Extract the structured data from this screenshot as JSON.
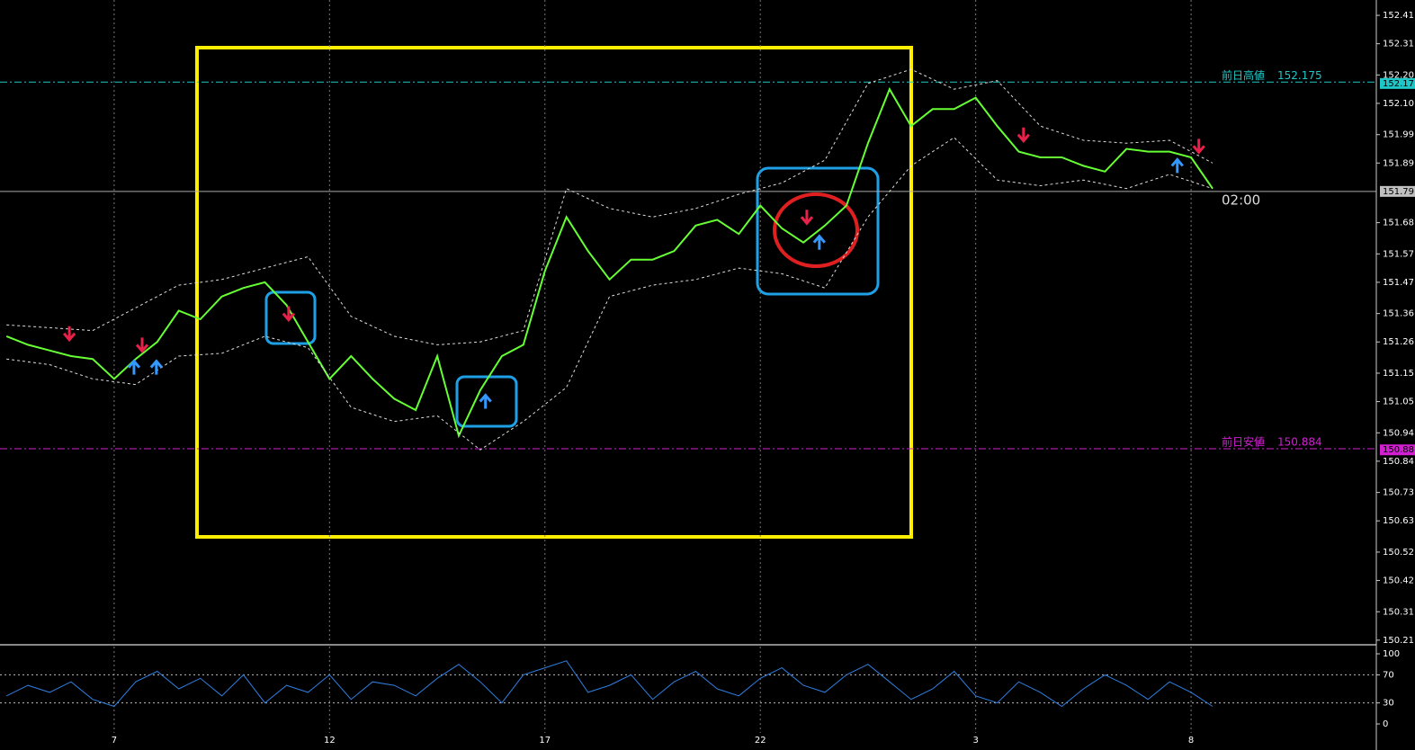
{
  "chart_data": [
    {
      "type": "line",
      "xlim": [
        -2.65,
        29.3
      ],
      "ylim": [
        150.2,
        152.464
      ],
      "xticks": [
        0,
        5,
        10,
        15,
        20,
        25
      ],
      "yticks": [
        152.41,
        152.31,
        {
          "value": 152.2,
          "label": "152.20"
        },
        {
          "value": 152.1,
          "label": "152.10"
        },
        151.99,
        151.89,
        151.68,
        151.57,
        151.47,
        151.36,
        151.26,
        151.15,
        151.05,
        150.94,
        150.84,
        150.73,
        150.63,
        150.52,
        150.42,
        150.31,
        150.21
      ],
      "grid": true,
      "series": [
        {
          "color": "#66ff33",
          "width": 2,
          "x": [
            -2.5,
            -2,
            -1.5,
            -1,
            -0.5,
            0,
            0.5,
            1,
            1.5,
            2,
            2.5,
            3,
            3.5,
            4,
            4.5,
            5,
            5.5,
            6,
            6.5,
            7,
            7.5,
            8,
            8.5,
            9,
            9.5,
            10,
            10.5,
            11,
            11.5,
            12,
            12.5,
            13,
            13.5,
            14,
            14.5,
            15,
            15.5,
            16,
            16.5,
            17,
            17.5,
            18,
            18.5,
            19,
            19.5,
            20,
            20.5,
            21,
            21.5,
            22,
            22.5,
            23,
            23.5,
            24,
            24.5,
            25,
            25.5
          ],
          "values": [
            151.28,
            151.25,
            151.23,
            151.21,
            151.2,
            151.13,
            151.2,
            151.26,
            151.37,
            151.34,
            151.42,
            151.45,
            151.47,
            151.39,
            151.26,
            151.13,
            151.21,
            151.13,
            151.06,
            151.02,
            151.21,
            150.93,
            151.09,
            151.21,
            151.25,
            151.51,
            151.7,
            151.58,
            151.48,
            151.55,
            151.55,
            151.58,
            151.67,
            151.69,
            151.64,
            151.74,
            151.66,
            151.61,
            151.67,
            151.74,
            151.96,
            152.15,
            152.02,
            152.08,
            152.08,
            152.12,
            152.02,
            151.93,
            151.91,
            151.91,
            151.88,
            151.86,
            151.94,
            151.93,
            151.93,
            151.91,
            151.8
          ]
        },
        {
          "color": "#dddddd",
          "dash": true,
          "width": 1,
          "x": [
            -2.5,
            -1.5,
            -0.5,
            0.5,
            1.5,
            2.5,
            3.5,
            4.5,
            5.5,
            6.5,
            7.5,
            8.5,
            9.5,
            10.5,
            11.5,
            12.5,
            13.5,
            14.5,
            15.5,
            16.5,
            17.5,
            18.5,
            19.5,
            20.5,
            21.5,
            22.5,
            23.5,
            24.5,
            25.5
          ],
          "values": [
            151.32,
            151.31,
            151.3,
            151.38,
            151.46,
            151.48,
            151.52,
            151.56,
            151.35,
            151.28,
            151.25,
            151.26,
            151.3,
            151.8,
            151.73,
            151.7,
            151.73,
            151.78,
            151.82,
            151.9,
            152.17,
            152.22,
            152.15,
            152.18,
            152.02,
            151.97,
            151.96,
            151.97,
            151.89
          ]
        },
        {
          "color": "#dddddd",
          "dash": true,
          "width": 1,
          "x": [
            -2.5,
            -1.5,
            -0.5,
            0.5,
            1.5,
            2.5,
            3.5,
            4.5,
            5.5,
            6.5,
            7.5,
            8.5,
            9.5,
            10.5,
            11.5,
            12.5,
            13.5,
            14.5,
            15.5,
            16.5,
            17.5,
            18.5,
            19.5,
            20.5,
            21.5,
            22.5,
            23.5,
            24.5,
            25.5
          ],
          "values": [
            151.2,
            151.18,
            151.13,
            151.11,
            151.21,
            151.22,
            151.28,
            151.24,
            151.03,
            150.98,
            151.0,
            150.88,
            150.98,
            151.1,
            151.42,
            151.46,
            151.48,
            151.52,
            151.5,
            151.45,
            151.7,
            151.88,
            151.98,
            151.83,
            151.81,
            151.83,
            151.8,
            151.85,
            151.8
          ]
        }
      ],
      "markers": [
        {
          "shape": "down",
          "color": "#e8214a",
          "x": [
            -1.04,
            0.65,
            4.05,
            16.08,
            21.11,
            25.18
          ],
          "y": [
            151.29,
            151.25,
            151.36,
            151.7,
            151.99,
            151.95
          ]
        },
        {
          "shape": "up",
          "color": "#3399ff",
          "x": [
            0.46,
            0.98,
            8.62,
            16.37,
            24.68
          ],
          "y": [
            151.17,
            151.17,
            151.05,
            151.61,
            151.88
          ]
        }
      ],
      "levels": [
        {
          "name": "前日高値",
          "value": 152.175,
          "color": "#1fc8c8"
        },
        {
          "name": "前日安値",
          "value": 150.884,
          "color": "#d21fd2"
        }
      ],
      "price_tags": [
        {
          "value": 152.17,
          "label": "152.17",
          "color": "#1fc8c8"
        },
        {
          "value": 151.79,
          "label": "151.79",
          "color": "#c0c0c0"
        },
        {
          "value": 150.88,
          "label": "150.88",
          "color": "#d21fd2"
        }
      ],
      "current_price": 151.79,
      "countdown": "02:00"
    },
    {
      "type": "line",
      "xlim": [
        -2.65,
        29.3
      ],
      "ylim": [
        -12.8,
        110.3
      ],
      "xticks": [
        {
          "value": 0,
          "label": "7"
        },
        {
          "value": 5,
          "label": "12"
        },
        {
          "value": 10,
          "label": "17"
        },
        {
          "value": 15,
          "label": "22"
        },
        {
          "value": 20,
          "label": "3"
        },
        {
          "value": 25,
          "label": "8"
        }
      ],
      "yticks": [
        0,
        30,
        70,
        100
      ],
      "levels_dotted": [
        30,
        70
      ],
      "grid": true,
      "series": [
        {
          "color": "#2f7fe0",
          "width": 1,
          "x": [
            -2.5,
            -2,
            -1.5,
            -1,
            -0.5,
            0,
            0.5,
            1,
            1.5,
            2,
            2.5,
            3,
            3.5,
            4,
            4.5,
            5,
            5.5,
            6,
            6.5,
            7,
            7.5,
            8,
            8.5,
            9,
            9.5,
            10,
            10.5,
            11,
            11.5,
            12,
            12.5,
            13,
            13.5,
            14,
            14.5,
            15,
            15.5,
            16,
            16.5,
            17,
            17.5,
            18,
            18.5,
            19,
            19.5,
            20,
            20.5,
            21,
            21.5,
            22,
            22.5,
            23,
            23.5,
            24,
            24.5,
            25,
            25.5
          ],
          "values": [
            40,
            55,
            45,
            60,
            35,
            25,
            60,
            75,
            50,
            65,
            40,
            70,
            30,
            55,
            45,
            70,
            35,
            60,
            55,
            40,
            65,
            85,
            60,
            30,
            70,
            80,
            90,
            45,
            55,
            70,
            35,
            60,
            75,
            50,
            40,
            65,
            80,
            55,
            45,
            70,
            85,
            60,
            35,
            50,
            75,
            40,
            30,
            60,
            45,
            25,
            50,
            70,
            55,
            35,
            60,
            45,
            25
          ]
        }
      ]
    }
  ]
}
